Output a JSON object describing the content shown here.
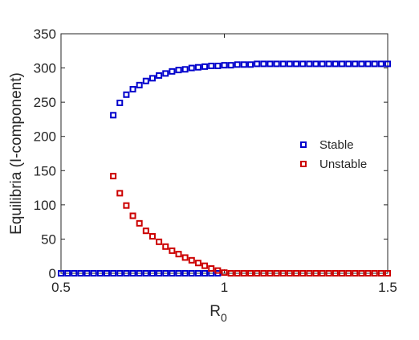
{
  "chart_data": {
    "type": "scatter",
    "title": "",
    "xlabel": "R",
    "xlabel_subscript": "0",
    "ylabel": "Equilibria (I-component)",
    "xlim": [
      0.5,
      1.5
    ],
    "ylim": [
      0,
      350
    ],
    "xticks": [
      0.5,
      1,
      1.5
    ],
    "xtick_labels": [
      "0.5",
      "1",
      "1.5"
    ],
    "yticks": [
      0,
      50,
      100,
      150,
      200,
      250,
      300,
      350
    ],
    "ytick_labels": [
      "0",
      "50",
      "100",
      "150",
      "200",
      "250",
      "300",
      "350"
    ],
    "grid": false,
    "legend_placement": "right",
    "series": [
      {
        "name": "Stable",
        "color": "#0000cc",
        "marker": "open-square",
        "x": [
          0.5,
          0.52,
          0.54,
          0.56,
          0.58,
          0.6,
          0.62,
          0.64,
          0.66,
          0.68,
          0.7,
          0.72,
          0.74,
          0.76,
          0.78,
          0.8,
          0.82,
          0.84,
          0.86,
          0.88,
          0.9,
          0.92,
          0.94,
          0.96,
          0.98,
          0.66,
          0.68,
          0.7,
          0.72,
          0.74,
          0.76,
          0.78,
          0.8,
          0.82,
          0.84,
          0.86,
          0.88,
          0.9,
          0.92,
          0.94,
          0.96,
          0.98,
          1.0,
          1.02,
          1.04,
          1.06,
          1.08,
          1.1,
          1.12,
          1.14,
          1.16,
          1.18,
          1.2,
          1.22,
          1.24,
          1.26,
          1.28,
          1.3,
          1.32,
          1.34,
          1.36,
          1.38,
          1.4,
          1.42,
          1.44,
          1.46,
          1.48,
          1.5
        ],
        "y": [
          0,
          0,
          0,
          0,
          0,
          0,
          0,
          0,
          0,
          0,
          0,
          0,
          0,
          0,
          0,
          0,
          0,
          0,
          0,
          0,
          0,
          0,
          0,
          0,
          0,
          231,
          249,
          261,
          269,
          275,
          281,
          285,
          289,
          292,
          295,
          297,
          298,
          300,
          301,
          302,
          303,
          303,
          304,
          304,
          305,
          305,
          305,
          306,
          306,
          306,
          306,
          306,
          306,
          306,
          306,
          306,
          306,
          306,
          306,
          306,
          306,
          306,
          306,
          306,
          306,
          306,
          306,
          306
        ]
      },
      {
        "name": "Unstable",
        "color": "#cc0000",
        "marker": "open-square",
        "x": [
          0.66,
          0.68,
          0.7,
          0.72,
          0.74,
          0.76,
          0.78,
          0.8,
          0.82,
          0.84,
          0.86,
          0.88,
          0.9,
          0.92,
          0.94,
          0.96,
          0.98,
          1.0,
          1.02,
          1.04,
          1.06,
          1.08,
          1.1,
          1.12,
          1.14,
          1.16,
          1.18,
          1.2,
          1.22,
          1.24,
          1.26,
          1.28,
          1.3,
          1.32,
          1.34,
          1.36,
          1.38,
          1.4,
          1.42,
          1.44,
          1.46,
          1.48,
          1.5
        ],
        "y": [
          142,
          117,
          99,
          84,
          73,
          62,
          54,
          46,
          39,
          33,
          28,
          23,
          19,
          15,
          11,
          7,
          4,
          1,
          0,
          0,
          0,
          0,
          0,
          0,
          0,
          0,
          0,
          0,
          0,
          0,
          0,
          0,
          0,
          0,
          0,
          0,
          0,
          0,
          0,
          0,
          0,
          0,
          0
        ]
      }
    ]
  }
}
